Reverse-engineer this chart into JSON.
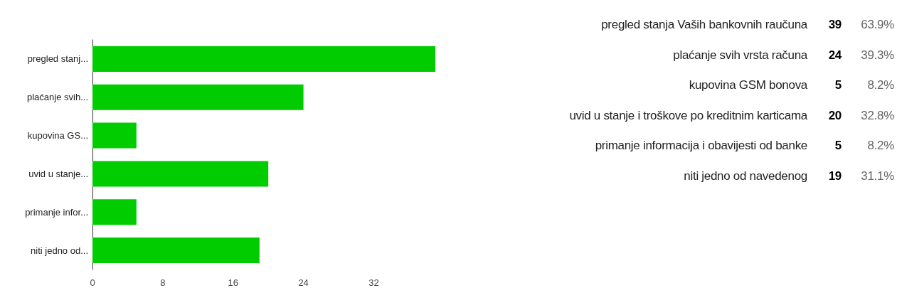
{
  "chart_data": [
    {
      "type": "bar",
      "orientation": "horizontal",
      "categories": [
        "pregled stanj...",
        "plaćanje svih...",
        "kupovina GS...",
        "uvid u stanje...",
        "primanje infor...",
        "niti jedno od..."
      ],
      "values": [
        39,
        24,
        5,
        20,
        5,
        19
      ],
      "color": "#00cc00",
      "xlim": [
        0,
        39
      ],
      "xticks": [
        0,
        8,
        16,
        24,
        32
      ]
    },
    {
      "type": "other",
      "categories": [
        "pregled stanja Vaših bankovnih raučuna",
        "plaćanje svih vrsta računa",
        "kupovina GSM bonova",
        "uvid u stanje i troškove po kreditnim karticama",
        "primanje informacija i obavijesti od banke",
        "niti jedno od navedenog"
      ],
      "values": [
        39,
        24,
        5,
        20,
        5,
        19
      ],
      "data_labels": true,
      "annotations": [
        "63.9%",
        "39.3%",
        "8.2%",
        "32.8%",
        "8.2%",
        "31.1%"
      ]
    }
  ]
}
